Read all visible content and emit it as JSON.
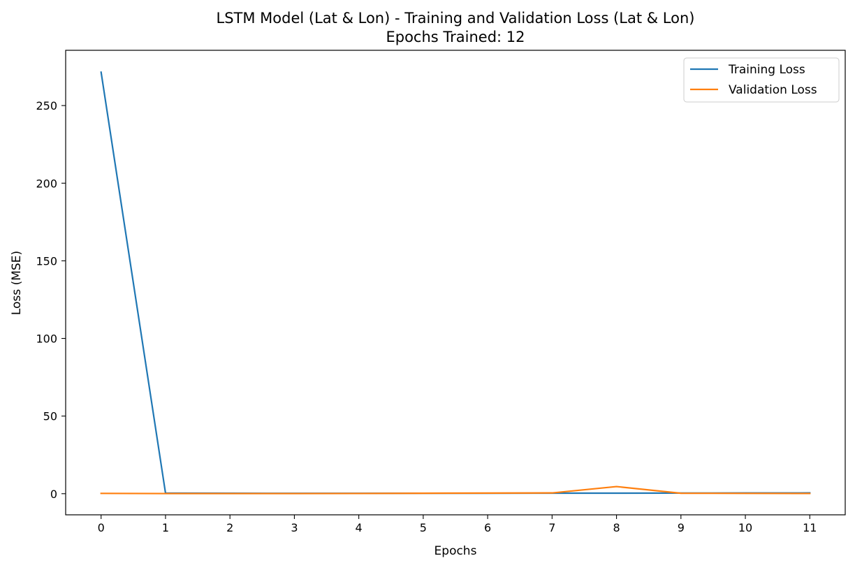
{
  "chart_data": {
    "type": "line",
    "title": "LSTM Model (Lat & Lon) - Training and Validation Loss (Lat & Lon)",
    "subtitle": "Epochs Trained: 12",
    "xlabel": "Epochs",
    "ylabel": "Loss (MSE)",
    "x": [
      0,
      1,
      2,
      3,
      4,
      5,
      6,
      7,
      8,
      9,
      10,
      11
    ],
    "x_ticks": [
      "0",
      "1",
      "2",
      "3",
      "4",
      "5",
      "6",
      "7",
      "8",
      "9",
      "10",
      "11"
    ],
    "y_ticks": [
      "0",
      "50",
      "100",
      "150",
      "200",
      "250"
    ],
    "xlim": [
      -0.55,
      11.55
    ],
    "ylim": [
      -13.6,
      285.6
    ],
    "grid": false,
    "legend_position": "top-right",
    "series": [
      {
        "name": "Training Loss",
        "color": "#1f77b4",
        "values": [
          271.5,
          0.35,
          0.3,
          0.25,
          0.25,
          0.3,
          0.3,
          0.35,
          0.35,
          0.4,
          0.45,
          0.5
        ]
      },
      {
        "name": "Validation Loss",
        "color": "#ff7f0e",
        "values": [
          0.2,
          0.1,
          0.1,
          0.1,
          0.15,
          0.3,
          0.4,
          0.5,
          4.6,
          0.3,
          0.2,
          0.15
        ]
      }
    ]
  }
}
